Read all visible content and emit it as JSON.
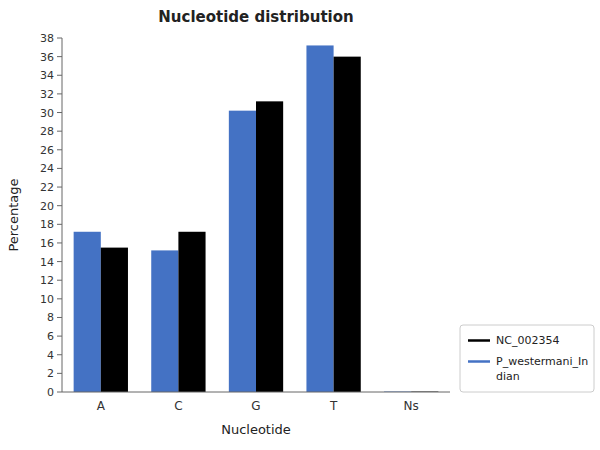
{
  "chart_data": {
    "type": "bar",
    "title": "Nucleotide distribution",
    "xlabel": "Nucleotide",
    "ylabel": "Percentage",
    "categories": [
      "A",
      "C",
      "G",
      "T",
      "Ns"
    ],
    "series": [
      {
        "name": "P_westermani_In\ndian",
        "color": "#4472C4",
        "values": [
          17.2,
          15.2,
          30.2,
          37.2,
          0.05
        ]
      },
      {
        "name": "NC_002354",
        "color": "#000000",
        "values": [
          15.5,
          17.2,
          31.2,
          36.0,
          0.05
        ]
      }
    ],
    "ylim": [
      0,
      38
    ],
    "yticks": [
      0,
      2,
      4,
      6,
      8,
      10,
      12,
      14,
      16,
      18,
      20,
      22,
      24,
      26,
      28,
      30,
      32,
      34,
      36,
      38
    ],
    "legend": "right"
  }
}
